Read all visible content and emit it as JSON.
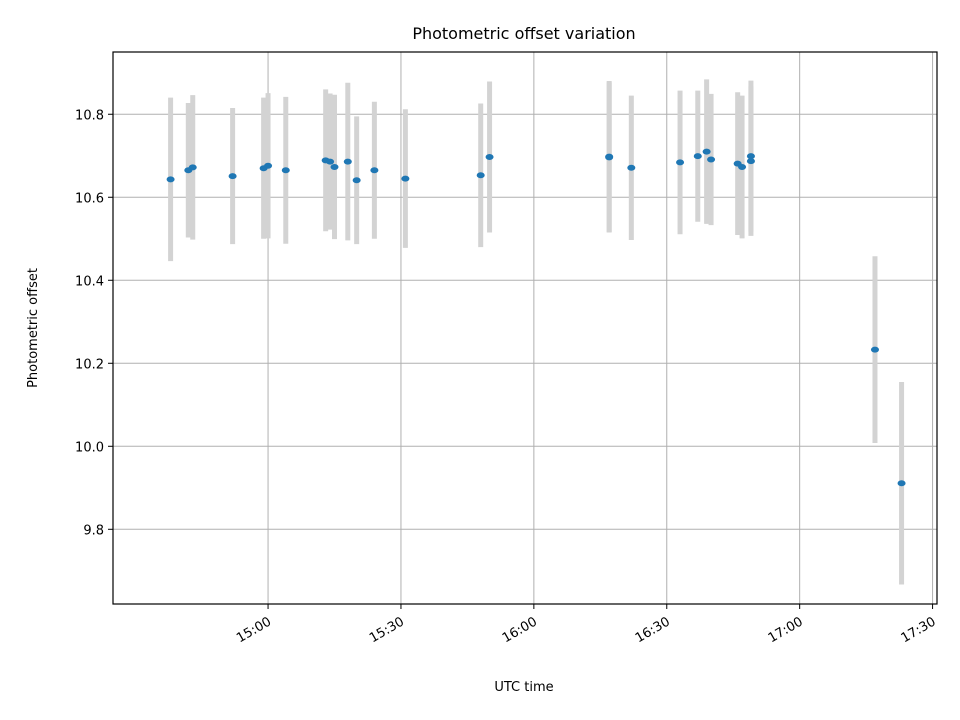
{
  "chart_data": {
    "type": "scatter",
    "title": "Photometric offset variation",
    "xlabel": "UTC time",
    "ylabel": "Photometric offset",
    "xlim": [
      "14:25",
      "17:31"
    ],
    "ylim": [
      9.62,
      10.95
    ],
    "x_ticks": [
      "15:00",
      "15:30",
      "16:00",
      "16:30",
      "17:00",
      "17:30"
    ],
    "y_ticks": [
      9.8,
      10.0,
      10.2,
      10.4,
      10.6,
      10.8
    ],
    "grid": true,
    "colors": {
      "points": "#1f77b4",
      "errorbars": "#d3d3d3"
    },
    "series": [
      {
        "points": [
          {
            "x": "14:38",
            "y": 10.643,
            "err": 0.197
          },
          {
            "x": "14:42",
            "y": 10.665,
            "err": 0.162
          },
          {
            "x": "14:43",
            "y": 10.672,
            "err": 0.174
          },
          {
            "x": "14:52",
            "y": 10.651,
            "err": 0.164
          },
          {
            "x": "14:59",
            "y": 10.67,
            "err": 0.17
          },
          {
            "x": "15:00",
            "y": 10.676,
            "err": 0.175
          },
          {
            "x": "15:04",
            "y": 10.665,
            "err": 0.177
          },
          {
            "x": "15:13",
            "y": 10.689,
            "err": 0.171
          },
          {
            "x": "15:14",
            "y": 10.686,
            "err": 0.164
          },
          {
            "x": "15:15",
            "y": 10.673,
            "err": 0.174
          },
          {
            "x": "15:18",
            "y": 10.686,
            "err": 0.19
          },
          {
            "x": "15:20",
            "y": 10.641,
            "err": 0.154
          },
          {
            "x": "15:24",
            "y": 10.665,
            "err": 0.165
          },
          {
            "x": "15:31",
            "y": 10.645,
            "err": 0.167
          },
          {
            "x": "15:48",
            "y": 10.653,
            "err": 0.173
          },
          {
            "x": "15:50",
            "y": 10.697,
            "err": 0.182
          },
          {
            "x": "16:17",
            "y": 10.698,
            "err": 0.182
          },
          {
            "x": "16:17",
            "y": 10.696,
            "err": 0.181
          },
          {
            "x": "16:22",
            "y": 10.671,
            "err": 0.174
          },
          {
            "x": "16:33",
            "y": 10.684,
            "err": 0.173
          },
          {
            "x": "16:37",
            "y": 10.699,
            "err": 0.158
          },
          {
            "x": "16:39",
            "y": 10.71,
            "err": 0.174
          },
          {
            "x": "16:40",
            "y": 10.691,
            "err": 0.158
          },
          {
            "x": "16:46",
            "y": 10.681,
            "err": 0.172
          },
          {
            "x": "16:47",
            "y": 10.673,
            "err": 0.172
          },
          {
            "x": "16:49",
            "y": 10.699,
            "err": 0.182
          },
          {
            "x": "16:49",
            "y": 10.687,
            "err": 0.18
          },
          {
            "x": "17:17",
            "y": 10.233,
            "err": 0.225
          },
          {
            "x": "17:23",
            "y": 9.911,
            "err": 0.244
          }
        ]
      }
    ]
  }
}
